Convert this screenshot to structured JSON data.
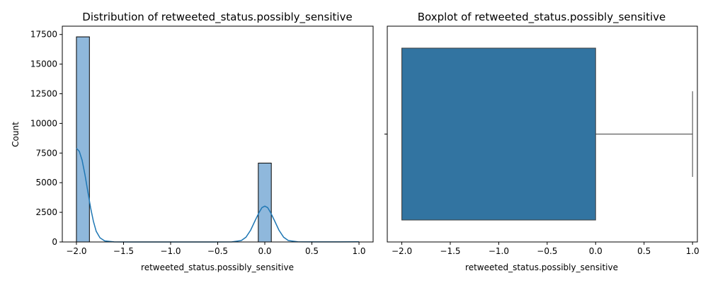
{
  "colors": {
    "hist_fill": "#8fb8dc",
    "hist_edge": "#000000",
    "kde_line": "#1f77b4",
    "box_fill": "#3274a1",
    "box_edge": "#404040"
  },
  "chart_data": [
    {
      "type": "bar",
      "title": "Distribution of retweeted_status.possibly_sensitive",
      "xlabel": "retweeted_status.possibly_sensitive",
      "ylabel": "Count",
      "xlim": [
        -2.15,
        1.15
      ],
      "ylim": [
        0,
        18200
      ],
      "xticks": [
        -2.0,
        -1.5,
        -1.0,
        -0.5,
        0.0,
        0.5,
        1.0
      ],
      "xtick_labels": [
        "−2.0",
        "−1.5",
        "−1.0",
        "−0.5",
        "0.0",
        "0.5",
        "1.0"
      ],
      "yticks": [
        0,
        2500,
        5000,
        7500,
        10000,
        12500,
        15000,
        17500
      ],
      "ytick_labels": [
        "0",
        "2500",
        "5000",
        "7500",
        "10000",
        "12500",
        "15000",
        "17500"
      ],
      "bins": [
        {
          "x0": -2.0,
          "x1": -1.862,
          "count": 17300
        },
        {
          "x0": -0.069,
          "x1": 0.069,
          "count": 6650
        }
      ],
      "kde": [
        {
          "x": -2.0,
          "y": 7900
        },
        {
          "x": -1.97,
          "y": 7650
        },
        {
          "x": -1.94,
          "y": 6900
        },
        {
          "x": -1.91,
          "y": 5700
        },
        {
          "x": -1.88,
          "y": 4300
        },
        {
          "x": -1.85,
          "y": 2900
        },
        {
          "x": -1.82,
          "y": 1750
        },
        {
          "x": -1.79,
          "y": 900
        },
        {
          "x": -1.75,
          "y": 350
        },
        {
          "x": -1.7,
          "y": 90
        },
        {
          "x": -1.6,
          "y": 10
        },
        {
          "x": -1.4,
          "y": 0
        },
        {
          "x": -0.6,
          "y": 0
        },
        {
          "x": -0.35,
          "y": 10
        },
        {
          "x": -0.25,
          "y": 120
        },
        {
          "x": -0.2,
          "y": 400
        },
        {
          "x": -0.15,
          "y": 1000
        },
        {
          "x": -0.1,
          "y": 1850
        },
        {
          "x": -0.06,
          "y": 2500
        },
        {
          "x": -0.03,
          "y": 2900
        },
        {
          "x": 0.0,
          "y": 3020
        },
        {
          "x": 0.03,
          "y": 2900
        },
        {
          "x": 0.06,
          "y": 2500
        },
        {
          "x": 0.1,
          "y": 1850
        },
        {
          "x": 0.15,
          "y": 1000
        },
        {
          "x": 0.2,
          "y": 400
        },
        {
          "x": 0.25,
          "y": 120
        },
        {
          "x": 0.35,
          "y": 15
        },
        {
          "x": 0.5,
          "y": 5
        },
        {
          "x": 0.8,
          "y": 10
        },
        {
          "x": 1.0,
          "y": 15
        }
      ]
    },
    {
      "type": "box",
      "title": "Boxplot of retweeted_status.possibly_sensitive",
      "xlabel": "retweeted_status.possibly_sensitive",
      "xlim": [
        -2.15,
        1.05
      ],
      "xticks": [
        -2.0,
        -1.5,
        -1.0,
        -0.5,
        0.0,
        0.5,
        1.0
      ],
      "xtick_labels": [
        "−2.0",
        "−1.5",
        "−1.0",
        "−0.5",
        "0.0",
        "0.5",
        "1.0"
      ],
      "min": -2.0,
      "q1": -2.0,
      "median": -2.0,
      "q3": 0.0,
      "max": 1.0
    }
  ]
}
